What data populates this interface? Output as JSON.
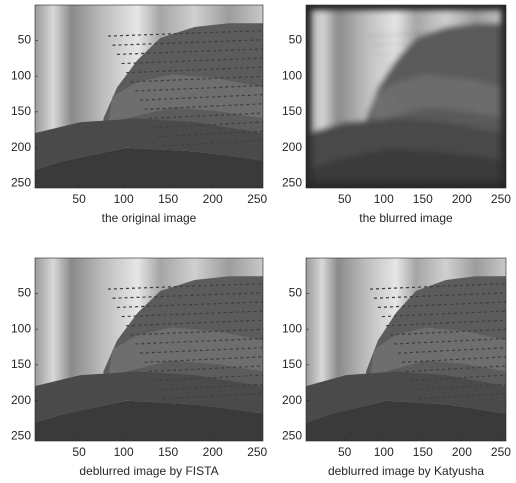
{
  "chart_data": [
    {
      "type": "image",
      "xlabel": "the original image",
      "xlim": [
        0.5,
        256.5
      ],
      "ylim": [
        256.5,
        0.5
      ],
      "xticks": [
        50,
        100,
        150,
        200,
        250
      ],
      "yticks": [
        50,
        100,
        150,
        200,
        250
      ]
    },
    {
      "type": "image",
      "xlabel": "the blurred image",
      "xlim": [
        0.5,
        256.5
      ],
      "ylim": [
        256.5,
        0.5
      ],
      "xticks": [
        50,
        100,
        150,
        200,
        250
      ],
      "yticks": [
        50,
        100,
        150,
        200,
        250
      ],
      "blurred": true
    },
    {
      "type": "image",
      "xlabel": "deblurred image by FISTA",
      "xlim": [
        0.5,
        256.5
      ],
      "ylim": [
        256.5,
        0.5
      ],
      "xticks": [
        50,
        100,
        150,
        200,
        250
      ],
      "yticks": [
        50,
        100,
        150,
        200,
        250
      ]
    },
    {
      "type": "image",
      "xlabel": "deblurred image by Katyusha",
      "xlim": [
        0.5,
        256.5
      ],
      "ylim": [
        256.5,
        0.5
      ],
      "xticks": [
        50,
        100,
        150,
        200,
        250
      ],
      "yticks": [
        50,
        100,
        150,
        200,
        250
      ]
    }
  ]
}
